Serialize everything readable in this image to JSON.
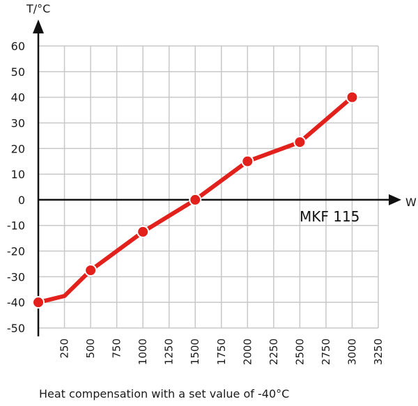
{
  "caption": "Heat compensation with a set value of -40°C",
  "colors": {
    "series": "#e2211c",
    "grid": "#c8c8c8",
    "axis": "#111111"
  },
  "chart_data": {
    "type": "line",
    "xlabel": "W",
    "ylabel": "T/°C",
    "xlim": [
      0,
      3250
    ],
    "ylim": [
      -50,
      60
    ],
    "x_ticks": [
      250,
      500,
      750,
      1000,
      1250,
      1500,
      1750,
      2000,
      2250,
      2500,
      2750,
      3000,
      3250
    ],
    "y_ticks": [
      60,
      50,
      40,
      30,
      20,
      10,
      0,
      -10,
      -20,
      -30,
      -40,
      -50
    ],
    "grid": true,
    "series_label": "MKF 115",
    "series": [
      {
        "x": [
          0,
          250,
          500,
          1000,
          1500,
          2000,
          2500,
          3000
        ],
        "y": [
          -40,
          -37.5,
          -27.5,
          -12.5,
          0,
          15,
          22.5,
          40
        ],
        "markers": [
          true,
          false,
          true,
          true,
          true,
          true,
          true,
          true
        ]
      }
    ]
  }
}
